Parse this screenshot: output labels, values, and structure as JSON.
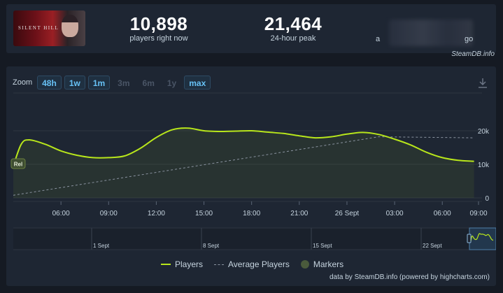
{
  "game": {
    "thumb_title": "SILENT HILL",
    "thumb_icon": "game-cover"
  },
  "stats": {
    "players_now": {
      "value": "10,898",
      "label": "players right now"
    },
    "peak_24h": {
      "value": "21,464",
      "label": "24-hour peak"
    },
    "all_time": {
      "prefix": "a",
      "suffix": "go"
    }
  },
  "credit": "SteamDB.info",
  "zoom": {
    "label": "Zoom",
    "options": [
      {
        "label": "48h",
        "state": "selected"
      },
      {
        "label": "1w",
        "state": "enabled"
      },
      {
        "label": "1m",
        "state": "enabled"
      },
      {
        "label": "3m",
        "state": "disabled"
      },
      {
        "label": "6m",
        "state": "disabled"
      },
      {
        "label": "1y",
        "state": "disabled"
      },
      {
        "label": "max",
        "state": "enabled"
      }
    ]
  },
  "legend": {
    "players": "Players",
    "average": "Average Players",
    "markers": "Markers"
  },
  "footer_credit": "data by SteamDB.info (powered by highcharts.com)",
  "colors": {
    "players": "#b8e61b",
    "average": "#8a93a0",
    "marker": "#4a5a3c",
    "background": "#1e2633"
  },
  "chart_data": {
    "type": "line",
    "ylim": [
      0,
      25000
    ],
    "y_ticks": [
      "0",
      "10k",
      "20k"
    ],
    "x_ticks": [
      "06:00",
      "09:00",
      "12:00",
      "15:00",
      "18:00",
      "21:00",
      "26 Sept",
      "03:00",
      "06:00",
      "09:00"
    ],
    "marker_label": "Rel",
    "series": [
      {
        "name": "Players",
        "x_hours": [
          0,
          0.5,
          1,
          2,
          3,
          4,
          5,
          6,
          7,
          8,
          9,
          10,
          11,
          12,
          13,
          14,
          15,
          16,
          17,
          18,
          19,
          20,
          21,
          22,
          23,
          24,
          25,
          26,
          27,
          28,
          29
        ],
        "values": [
          9500,
          16000,
          17300,
          16000,
          14000,
          12700,
          12000,
          12000,
          12500,
          14800,
          18000,
          20300,
          20800,
          20000,
          19800,
          19900,
          20000,
          19600,
          19200,
          18500,
          17900,
          18200,
          19000,
          19500,
          18900,
          17500,
          15800,
          13600,
          12000,
          11200,
          10900
        ]
      },
      {
        "name": "Average Players",
        "x_hours": [
          0,
          23,
          29
        ],
        "values": [
          800,
          18200,
          17900
        ]
      }
    ],
    "navigator": {
      "labels": [
        "1 Sept",
        "8 Sept",
        "15 Sept",
        "22 Sept"
      ]
    }
  }
}
